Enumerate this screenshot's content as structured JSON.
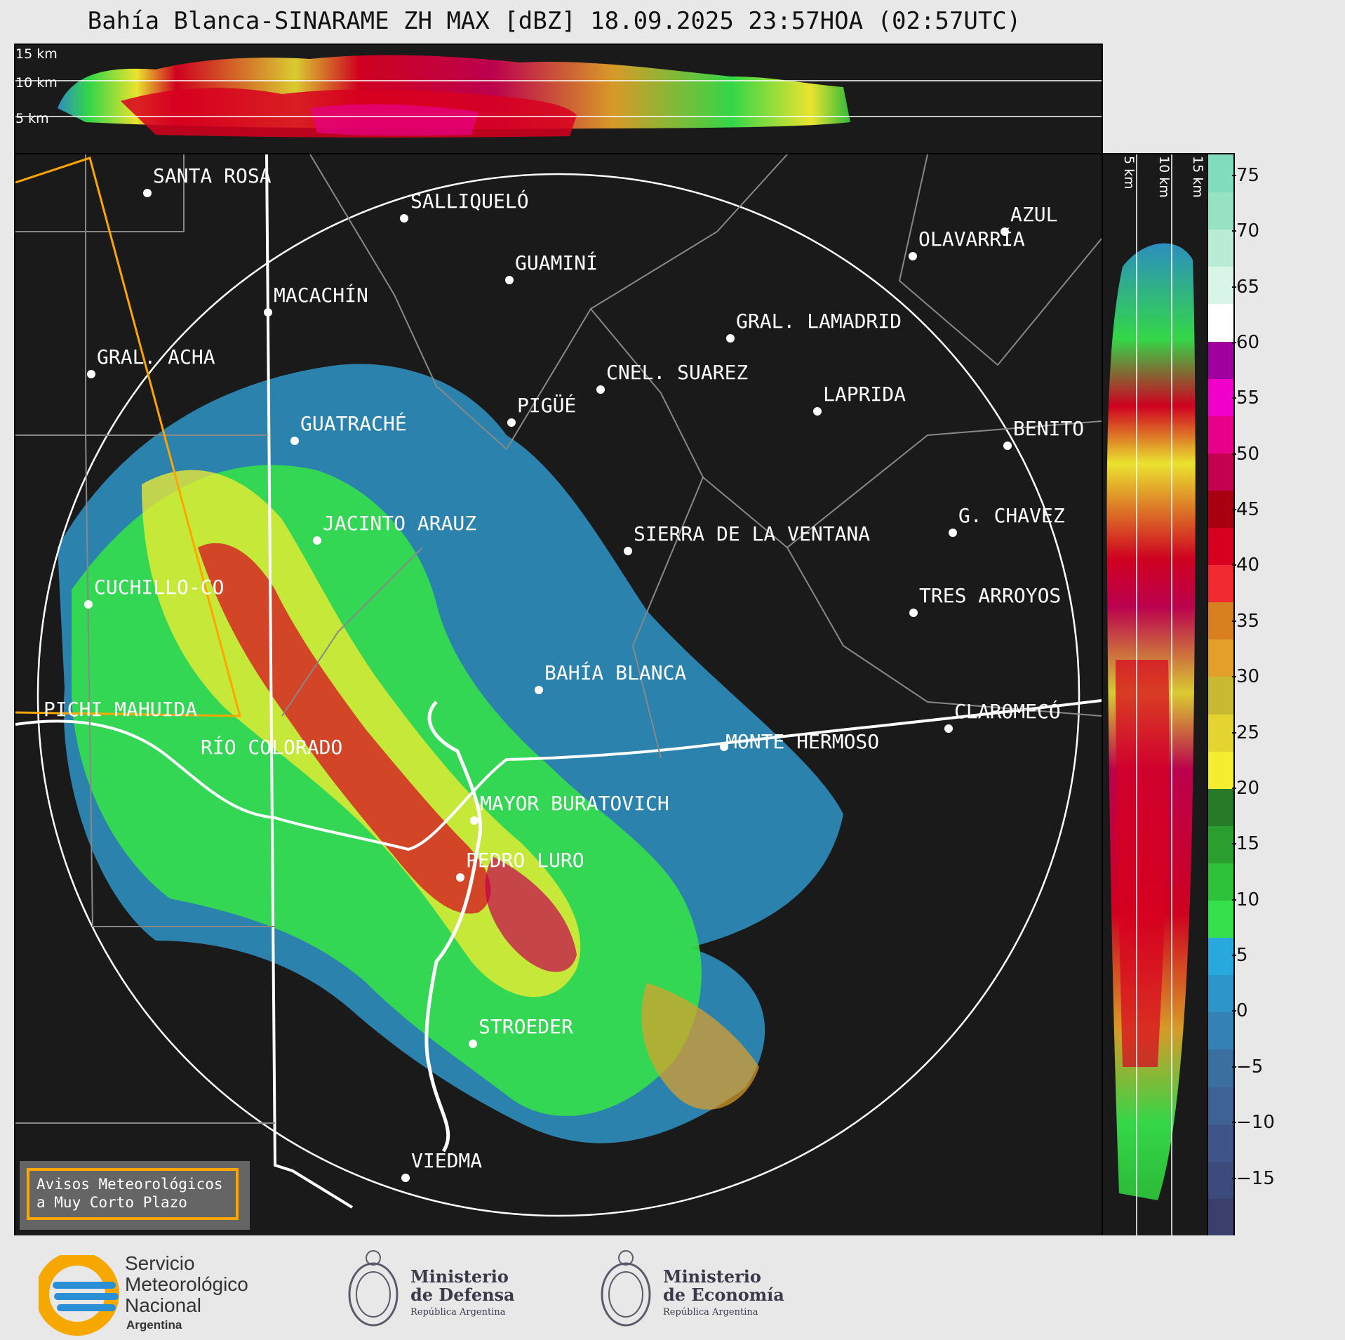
{
  "title": "Bahía Blanca-SINARAME ZH MAX [dBZ] 18.09.2025 23:57HOA (02:57UTC)",
  "top_section": {
    "altitude_labels": [
      "15 km",
      "10 km",
      "5 km"
    ]
  },
  "right_section": {
    "altitude_labels": [
      "5 km",
      "10 km",
      "15 km"
    ]
  },
  "colorbar": {
    "ticks": [
      "75",
      "70",
      "65",
      "60",
      "55",
      "50",
      "45",
      "40",
      "35",
      "30",
      "25",
      "20",
      "15",
      "10",
      "5",
      "0",
      "−5",
      "−10",
      "−15"
    ],
    "colors": [
      "#3a3f6e",
      "#3d4a7c",
      "#3f558a",
      "#3e6294",
      "#3a6fa0",
      "#3580b5",
      "#2e95c8",
      "#28a8dc",
      "#35e04a",
      "#2ec23a",
      "#2a9e2f",
      "#267a28",
      "#f5ee30",
      "#e3d432",
      "#c8b832",
      "#e2a028",
      "#d88020",
      "#f02a30",
      "#d80020",
      "#a80010",
      "#c40050",
      "#e8008a",
      "#f000c8",
      "#a000a0",
      "#ffffff",
      "#d8f5e8",
      "#b8ecd6",
      "#98e2c4",
      "#80dcbc"
    ],
    "range": [
      -20,
      77
    ]
  },
  "map": {
    "cities": [
      {
        "name": "SANTA ROSA"
      },
      {
        "name": "SALLIQUELÓ"
      },
      {
        "name": "GUAMINÍ"
      },
      {
        "name": "AZUL"
      },
      {
        "name": "OLAVARRÍA"
      },
      {
        "name": "MACACHÍN"
      },
      {
        "name": "GRAL. LAMADRID"
      },
      {
        "name": "GRAL. ACHA"
      },
      {
        "name": "CNEL. SUAREZ"
      },
      {
        "name": "LAPRIDA"
      },
      {
        "name": "PIGÜÉ"
      },
      {
        "name": "GUATRACHÉ"
      },
      {
        "name": "BENITO"
      },
      {
        "name": "JACINTO ARAUZ"
      },
      {
        "name": "G. CHAVEZ"
      },
      {
        "name": "SIERRA DE LA VENTANA"
      },
      {
        "name": "CUCHILLO-CO"
      },
      {
        "name": "TRES ARROYOS"
      },
      {
        "name": "BAHÍA BLANCA"
      },
      {
        "name": "PICHI MAHUIDA"
      },
      {
        "name": "CLAROMECÓ"
      },
      {
        "name": "MONTE HERMOSO"
      },
      {
        "name": "RÍO COLORADO"
      },
      {
        "name": "MAYOR BURATOVICH"
      },
      {
        "name": "PEDRO LURO"
      },
      {
        "name": "STROEDER"
      },
      {
        "name": "VIEDMA"
      }
    ]
  },
  "warning": {
    "line1": "Avisos Meteorológicos",
    "line2": "a Muy Corto Plazo"
  },
  "footer": {
    "smn": {
      "line1": "Servicio",
      "line2": "Meteorológico",
      "line3": "Nacional",
      "line4": "Argentina"
    },
    "defensa": {
      "line1": "Ministerio",
      "line2": "de Defensa",
      "line3": "República Argentina"
    },
    "economia": {
      "line1": "Ministerio",
      "line2": "de Economía",
      "line3": "República Argentina"
    }
  }
}
